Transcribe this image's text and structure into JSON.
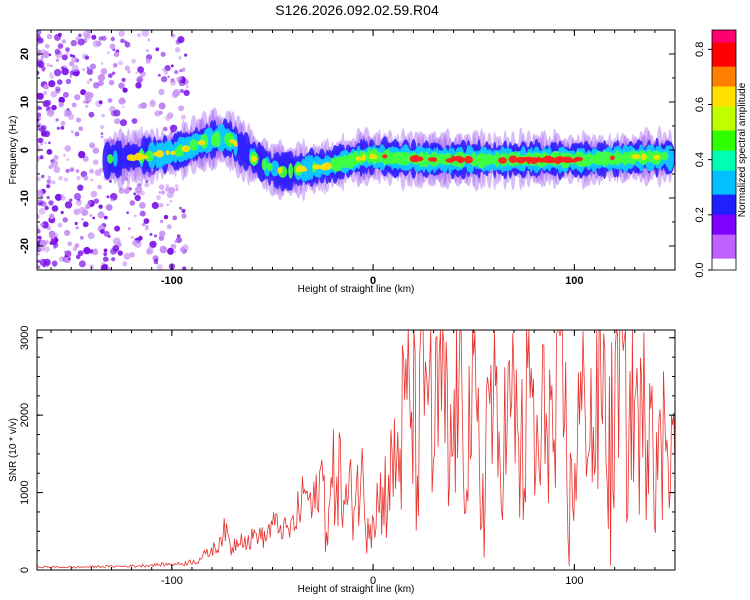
{
  "title": "S126.2026.092.02.59.R04",
  "chart_data": [
    {
      "type": "heatmap",
      "xlabel": "Height of straight line (km)",
      "ylabel": "Frequency (Hz)",
      "xlim": [
        -167,
        150
      ],
      "ylim": [
        -25,
        25
      ],
      "x_ticks": [
        -100,
        0,
        100
      ],
      "y_ticks": [
        -20,
        -10,
        0,
        10,
        20
      ],
      "colorbar": {
        "label": "Normalized spectral amplitude",
        "range": [
          0,
          0.87
        ],
        "ticks": [
          0.0,
          0.2,
          0.4,
          0.6,
          0.8
        ],
        "colormap": [
          "#ffffff",
          "#c060ff",
          "#8000ff",
          "#2020ff",
          "#00c0ff",
          "#00ffb0",
          "#30ff00",
          "#c0ff00",
          "#ffe000",
          "#ff8000",
          "#ff0000",
          "#ff0070"
        ]
      },
      "ridge": [
        {
          "x": -132,
          "freq": -2,
          "amp": 0.35
        },
        {
          "x": -120,
          "freq": -1.5,
          "amp": 0.4
        },
        {
          "x": -105,
          "freq": -1,
          "amp": 0.45
        },
        {
          "x": -95,
          "freq": 0,
          "amp": 0.5
        },
        {
          "x": -85,
          "freq": 1.5,
          "amp": 0.55
        },
        {
          "x": -77,
          "freq": 2.5,
          "amp": 0.6
        },
        {
          "x": -70,
          "freq": 2,
          "amp": 0.5
        },
        {
          "x": -65,
          "freq": 0,
          "amp": 0.4
        },
        {
          "x": -58,
          "freq": -2,
          "amp": 0.35
        },
        {
          "x": -50,
          "freq": -4,
          "amp": 0.35
        },
        {
          "x": -42,
          "freq": -4.5,
          "amp": 0.4
        },
        {
          "x": -35,
          "freq": -4,
          "amp": 0.45
        },
        {
          "x": -25,
          "freq": -3.5,
          "amp": 0.55
        },
        {
          "x": -15,
          "freq": -2.5,
          "amp": 0.7
        },
        {
          "x": -5,
          "freq": -1.5,
          "amp": 0.65
        },
        {
          "x": 5,
          "freq": -1.5,
          "amp": 0.7
        },
        {
          "x": 15,
          "freq": -1.8,
          "amp": 0.8
        },
        {
          "x": 30,
          "freq": -2,
          "amp": 0.75
        },
        {
          "x": 45,
          "freq": -2,
          "amp": 0.8
        },
        {
          "x": 60,
          "freq": -2,
          "amp": 0.78
        },
        {
          "x": 75,
          "freq": -2,
          "amp": 0.8
        },
        {
          "x": 90,
          "freq": -2,
          "amp": 0.85
        },
        {
          "x": 105,
          "freq": -2,
          "amp": 0.75
        },
        {
          "x": 120,
          "freq": -1.8,
          "amp": 0.7
        },
        {
          "x": 135,
          "freq": -1.5,
          "amp": 0.65
        },
        {
          "x": 148,
          "freq": -1.5,
          "amp": 0.6
        }
      ]
    },
    {
      "type": "line",
      "xlabel": "Height of straight line (km)",
      "ylabel": "SNR (10 * v/v)",
      "xlim": [
        -167,
        150
      ],
      "ylim": [
        0,
        3100
      ],
      "x_ticks": [
        -100,
        0,
        100
      ],
      "y_ticks": [
        0,
        1000,
        2000,
        3000
      ],
      "color": "#e8322e",
      "series": [
        {
          "x": [
            -167,
            -150,
            -135,
            -120,
            -105,
            -95,
            -88,
            -82,
            -78,
            -74,
            -70,
            -66,
            -62,
            -58,
            -54,
            -50,
            -46,
            -42,
            -38,
            -34,
            -30,
            -26,
            -22,
            -18,
            -14,
            -10,
            -6,
            -2,
            2,
            6,
            10,
            14,
            18,
            22,
            26,
            28,
            30,
            34,
            38,
            42,
            46,
            50,
            54,
            58,
            62,
            66,
            70,
            74,
            78,
            82,
            86,
            90,
            94,
            98,
            102,
            106,
            110,
            114,
            118,
            122,
            126,
            130,
            134,
            138,
            142,
            146,
            150
          ],
          "y": [
            40,
            35,
            45,
            50,
            70,
            80,
            120,
            220,
            300,
            520,
            280,
            450,
            350,
            480,
            400,
            600,
            550,
            500,
            650,
            1050,
            750,
            1200,
            650,
            1380,
            800,
            1000,
            1150,
            700,
            850,
            1000,
            1300,
            1700,
            2350,
            1500,
            2450,
            3100,
            1500,
            2500,
            1200,
            2300,
            1700,
            2150,
            900,
            2400,
            1400,
            1900,
            2150,
            1250,
            2500,
            1100,
            2300,
            1500,
            2450,
            700,
            1900,
            2200,
            1700,
            2600,
            1200,
            2950,
            1700,
            2200,
            1600,
            2750,
            1100,
            2150,
            1300
          ]
        }
      ]
    }
  ]
}
